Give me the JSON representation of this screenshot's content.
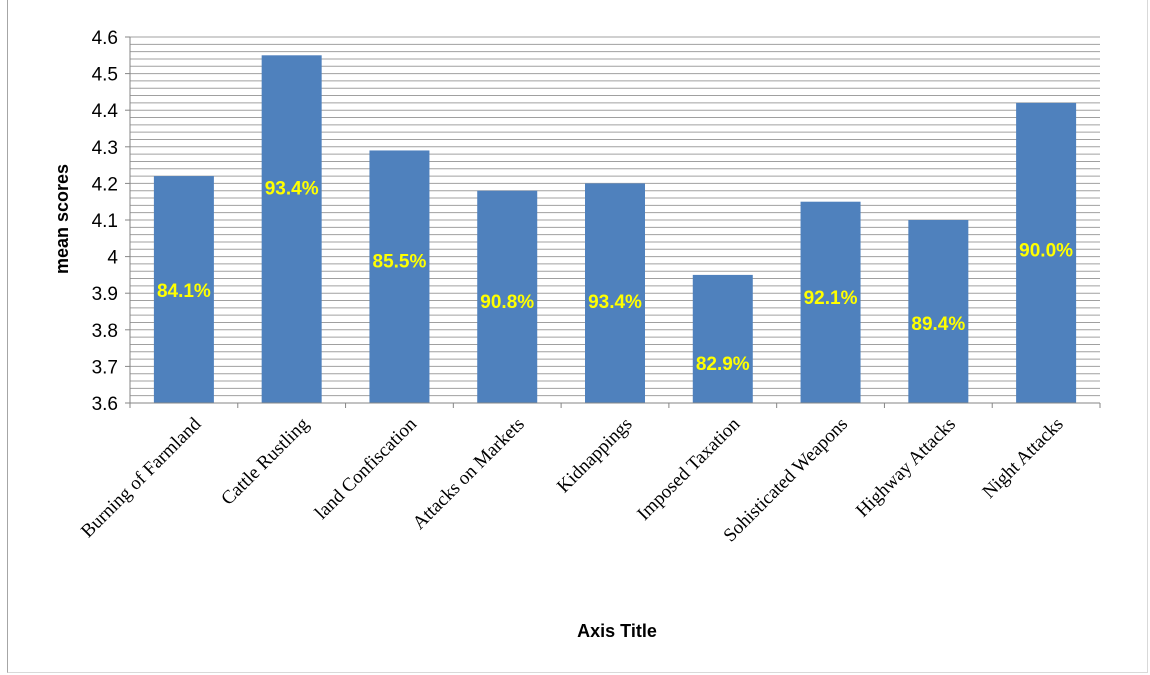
{
  "chart_data": {
    "type": "bar",
    "categories": [
      "Burning of Farmland",
      "Cattle Rustling",
      "land Confiscation",
      "Attacks on Markets",
      "Kidnappings",
      "Imposed Taxation",
      "Sohisticated Weapons",
      "Highway Attacks",
      "Night Attacks"
    ],
    "values": [
      4.22,
      4.55,
      4.29,
      4.18,
      4.2,
      3.95,
      4.15,
      4.1,
      4.42
    ],
    "data_labels": [
      "84.1%",
      "93.4%",
      "85.5%",
      "90.8%",
      "93.4%",
      "82.9%",
      "92.1%",
      "89.4%",
      "90.0%"
    ],
    "label_positions": [
      3.89,
      4.17,
      3.97,
      3.86,
      3.86,
      3.69,
      3.87,
      3.8,
      4.0
    ],
    "yticks": [
      "3.6",
      "3.7",
      "3.8",
      "3.9",
      "4",
      "4.1",
      "4.2",
      "4.3",
      "4.4",
      "4.5",
      "4.6"
    ],
    "ylim": [
      3.6,
      4.6
    ],
    "minor_grid_step": 0.02,
    "xlabel": "Axis Title",
    "ylabel": "mean scores",
    "grid": true,
    "legend": "none",
    "colors": {
      "bar": "#4f81bd",
      "label": "#ffff00",
      "grid": "#a0a0a0"
    }
  }
}
